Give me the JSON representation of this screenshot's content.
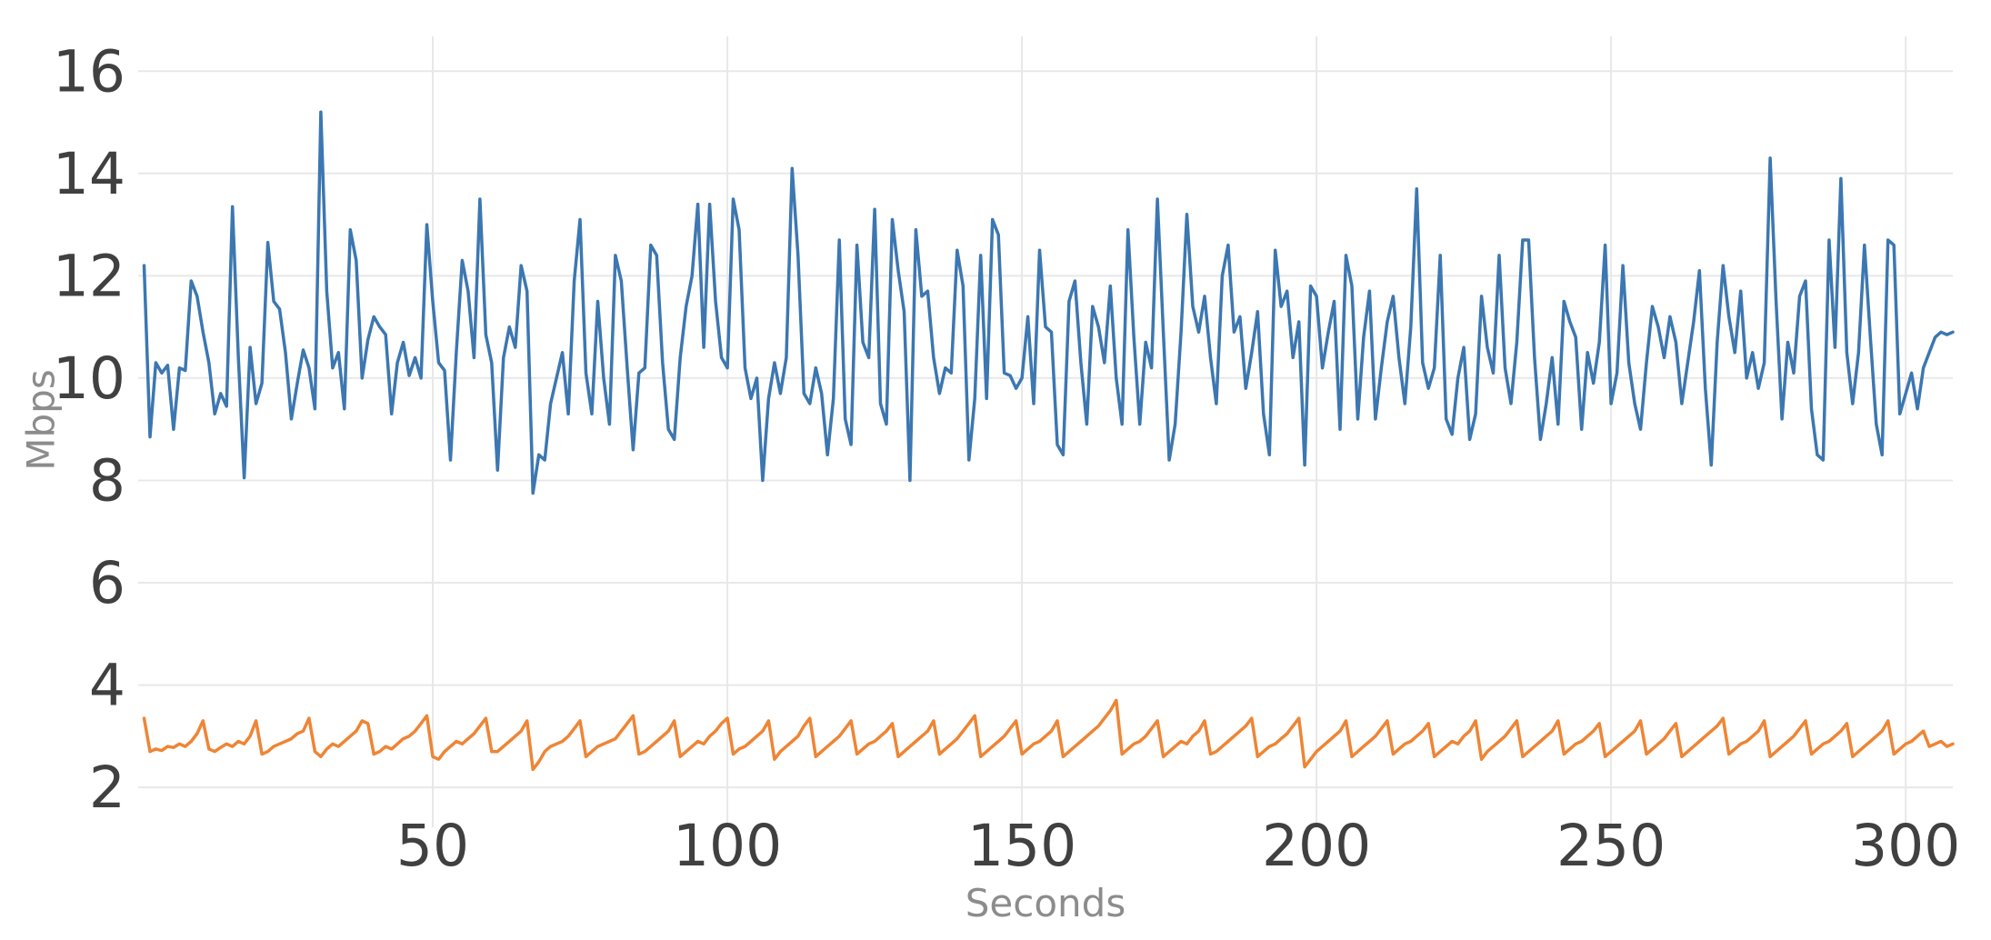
{
  "style": {
    "background": "#ffffff",
    "grid_color": "#e8e8e8",
    "tick_color": "#404040",
    "axis_title_color": "#8c8c8c"
  },
  "chart_data": {
    "type": "line",
    "title": "",
    "xlabel": "Seconds",
    "ylabel": "Mbps",
    "xlim": [
      0,
      308
    ],
    "ylim": [
      1.22,
      16.68
    ],
    "x_ticks": [
      50,
      100,
      150,
      200,
      250,
      300
    ],
    "y_ticks": [
      2,
      4,
      6,
      8,
      10,
      12,
      14,
      16
    ],
    "grid": true,
    "legend_position": "none",
    "x_start": 1,
    "x_step": 1,
    "series": [
      {
        "name": "blue",
        "color": "#3c77b1",
        "values": [
          12.2,
          8.85,
          10.3,
          10.1,
          10.25,
          9.0,
          10.2,
          10.15,
          11.9,
          11.6,
          10.9,
          10.3,
          9.3,
          9.7,
          9.45,
          13.35,
          10.4,
          8.05,
          10.6,
          9.5,
          9.9,
          12.65,
          11.5,
          11.35,
          10.5,
          9.2,
          9.9,
          10.55,
          10.2,
          9.4,
          15.2,
          11.7,
          10.2,
          10.5,
          9.4,
          12.9,
          12.3,
          10.0,
          10.75,
          11.2,
          11.0,
          10.85,
          9.3,
          10.3,
          10.7,
          10.05,
          10.4,
          10.0,
          13.0,
          11.5,
          10.3,
          10.15,
          8.4,
          10.5,
          12.3,
          11.7,
          10.4,
          13.5,
          10.85,
          10.3,
          8.2,
          10.4,
          11.0,
          10.6,
          12.2,
          11.7,
          7.75,
          8.5,
          8.4,
          9.5,
          10.0,
          10.5,
          9.3,
          11.9,
          13.1,
          10.1,
          9.3,
          11.5,
          10.0,
          9.1,
          12.4,
          11.9,
          10.2,
          8.6,
          10.1,
          10.2,
          12.6,
          12.4,
          10.3,
          9.0,
          8.8,
          10.4,
          11.4,
          12.0,
          13.4,
          10.6,
          13.4,
          11.5,
          10.4,
          10.2,
          13.5,
          12.9,
          10.2,
          9.6,
          10.0,
          8.0,
          9.6,
          10.3,
          9.7,
          10.4,
          14.1,
          12.4,
          9.7,
          9.5,
          10.2,
          9.7,
          8.5,
          9.6,
          12.7,
          9.2,
          8.7,
          12.6,
          10.7,
          10.4,
          13.3,
          9.5,
          9.1,
          13.1,
          12.1,
          11.3,
          8.0,
          12.9,
          11.6,
          11.7,
          10.4,
          9.7,
          10.2,
          10.1,
          12.5,
          11.8,
          8.4,
          9.6,
          12.4,
          9.6,
          13.1,
          12.8,
          10.1,
          10.05,
          9.8,
          10.0,
          11.2,
          9.5,
          12.5,
          11.0,
          10.9,
          8.7,
          8.5,
          11.5,
          11.9,
          10.3,
          9.1,
          11.4,
          11.0,
          10.3,
          11.8,
          10.0,
          9.1,
          12.9,
          10.8,
          9.1,
          10.7,
          10.2,
          13.5,
          10.9,
          8.4,
          9.1,
          10.9,
          13.2,
          11.4,
          10.9,
          11.6,
          10.4,
          9.5,
          12.0,
          12.6,
          10.9,
          11.2,
          9.8,
          10.5,
          11.3,
          9.3,
          8.5,
          12.5,
          11.4,
          11.7,
          10.4,
          11.1,
          8.3,
          11.8,
          11.6,
          10.2,
          10.9,
          11.5,
          9.0,
          12.4,
          11.8,
          9.2,
          10.8,
          11.7,
          9.2,
          10.2,
          11.1,
          11.6,
          10.4,
          9.5,
          11.0,
          13.7,
          10.3,
          9.8,
          10.2,
          12.4,
          9.2,
          8.9,
          10.0,
          10.6,
          8.8,
          9.3,
          11.6,
          10.6,
          10.1,
          12.4,
          10.2,
          9.5,
          10.7,
          12.7,
          12.7,
          10.4,
          8.8,
          9.5,
          10.4,
          9.1,
          11.5,
          11.1,
          10.8,
          9.0,
          10.5,
          9.9,
          10.7,
          12.6,
          9.5,
          10.1,
          12.2,
          10.3,
          9.5,
          9.0,
          10.3,
          11.4,
          11.0,
          10.4,
          11.2,
          10.7,
          9.5,
          10.3,
          11.1,
          12.1,
          9.8,
          8.3,
          10.7,
          12.2,
          11.2,
          10.5,
          11.7,
          10.0,
          10.5,
          9.8,
          10.3,
          14.3,
          11.5,
          9.2,
          10.7,
          10.1,
          11.6,
          11.9,
          9.4,
          8.5,
          8.4,
          12.7,
          10.6,
          13.9,
          10.5,
          9.5,
          10.5,
          12.6,
          10.8,
          9.1,
          8.5,
          12.7,
          12.6,
          9.3,
          9.7,
          10.1,
          9.4,
          10.2,
          10.5,
          10.8,
          10.9,
          10.85,
          10.9
        ]
      },
      {
        "name": "orange",
        "color": "#ee8535",
        "values": [
          3.35,
          2.7,
          2.75,
          2.72,
          2.8,
          2.78,
          2.85,
          2.8,
          2.9,
          3.05,
          3.3,
          2.75,
          2.7,
          2.78,
          2.85,
          2.8,
          2.9,
          2.85,
          3.0,
          3.3,
          2.65,
          2.7,
          2.8,
          2.85,
          2.9,
          2.95,
          3.05,
          3.1,
          3.35,
          2.7,
          2.6,
          2.75,
          2.85,
          2.8,
          2.9,
          3.0,
          3.1,
          3.3,
          3.25,
          2.65,
          2.7,
          2.8,
          2.75,
          2.85,
          2.95,
          3.0,
          3.1,
          3.25,
          3.4,
          2.6,
          2.55,
          2.7,
          2.8,
          2.9,
          2.85,
          2.95,
          3.05,
          3.2,
          3.35,
          2.7,
          2.7,
          2.8,
          2.9,
          3.0,
          3.1,
          3.3,
          2.35,
          2.5,
          2.7,
          2.8,
          2.85,
          2.9,
          3.0,
          3.15,
          3.3,
          2.6,
          2.7,
          2.8,
          2.85,
          2.9,
          2.95,
          3.1,
          3.25,
          3.4,
          2.65,
          2.7,
          2.8,
          2.9,
          3.0,
          3.1,
          3.3,
          2.6,
          2.7,
          2.8,
          2.9,
          2.85,
          3.0,
          3.1,
          3.25,
          3.35,
          2.65,
          2.75,
          2.8,
          2.9,
          3.0,
          3.1,
          3.3,
          2.55,
          2.7,
          2.8,
          2.9,
          3.0,
          3.2,
          3.35,
          2.6,
          2.7,
          2.8,
          2.9,
          3.0,
          3.15,
          3.3,
          2.65,
          2.75,
          2.85,
          2.9,
          3.0,
          3.1,
          3.25,
          2.6,
          2.7,
          2.8,
          2.9,
          3.0,
          3.1,
          3.3,
          2.65,
          2.75,
          2.85,
          2.95,
          3.1,
          3.25,
          3.4,
          2.6,
          2.7,
          2.8,
          2.9,
          3.0,
          3.15,
          3.3,
          2.65,
          2.75,
          2.85,
          2.9,
          3.0,
          3.1,
          3.3,
          2.6,
          2.7,
          2.8,
          2.9,
          3.0,
          3.1,
          3.2,
          3.35,
          3.5,
          3.7,
          2.65,
          2.75,
          2.85,
          2.9,
          3.0,
          3.15,
          3.3,
          2.6,
          2.7,
          2.8,
          2.9,
          2.85,
          3.0,
          3.1,
          3.3,
          2.65,
          2.7,
          2.8,
          2.9,
          3.0,
          3.1,
          3.2,
          3.35,
          2.6,
          2.7,
          2.8,
          2.85,
          2.95,
          3.05,
          3.2,
          3.35,
          2.4,
          2.55,
          2.7,
          2.8,
          2.9,
          3.0,
          3.1,
          3.3,
          2.6,
          2.7,
          2.8,
          2.9,
          3.0,
          3.15,
          3.3,
          2.65,
          2.75,
          2.85,
          2.9,
          3.0,
          3.1,
          3.25,
          2.6,
          2.7,
          2.8,
          2.9,
          2.85,
          3.0,
          3.1,
          3.3,
          2.55,
          2.7,
          2.8,
          2.9,
          3.0,
          3.15,
          3.3,
          2.6,
          2.7,
          2.8,
          2.9,
          3.0,
          3.1,
          3.3,
          2.65,
          2.75,
          2.85,
          2.9,
          3.0,
          3.1,
          3.25,
          2.6,
          2.7,
          2.8,
          2.9,
          3.0,
          3.1,
          3.3,
          2.65,
          2.75,
          2.85,
          2.95,
          3.1,
          3.25,
          2.6,
          2.7,
          2.8,
          2.9,
          3.0,
          3.1,
          3.2,
          3.35,
          2.65,
          2.75,
          2.85,
          2.9,
          3.0,
          3.1,
          3.3,
          2.6,
          2.7,
          2.8,
          2.9,
          3.0,
          3.15,
          3.3,
          2.65,
          2.75,
          2.85,
          2.9,
          3.0,
          3.1,
          3.25,
          2.6,
          2.7,
          2.8,
          2.9,
          3.0,
          3.1,
          3.3,
          2.65,
          2.75,
          2.85,
          2.9,
          3.0,
          3.1,
          2.8,
          2.85,
          2.9,
          2.8,
          2.85
        ]
      }
    ]
  }
}
